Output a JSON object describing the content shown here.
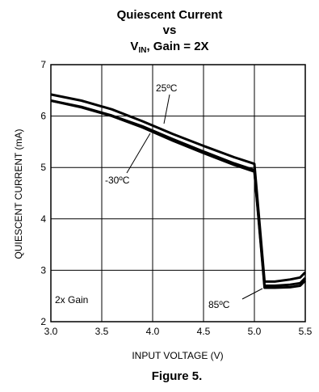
{
  "chart_data": {
    "type": "line",
    "title_line1": "Quiescent Current",
    "title_line2": "vs",
    "title_line3_main": "V",
    "title_line3_sub": "IN",
    "title_line3_rest": ", Gain = 2X",
    "xlabel": "INPUT VOLTAGE (V)",
    "ylabel": "QUIESCENT CURRENT (mA)",
    "xlim": [
      3.0,
      5.5
    ],
    "ylim": [
      2,
      7
    ],
    "xticks": [
      "3.0",
      "3.5",
      "4.0",
      "4.5",
      "5.0",
      "5.5"
    ],
    "yticks": [
      "2",
      "3",
      "4",
      "5",
      "6",
      "7"
    ],
    "grid": true,
    "series": [
      {
        "name": "25ºC",
        "x": [
          3.0,
          3.3,
          3.6,
          3.9,
          4.2,
          4.5,
          4.8,
          5.0,
          5.1,
          5.2,
          5.35,
          5.45,
          5.5
        ],
        "y": [
          6.42,
          6.3,
          6.13,
          5.9,
          5.65,
          5.42,
          5.2,
          5.07,
          2.78,
          2.78,
          2.82,
          2.86,
          2.96
        ]
      },
      {
        "name": "-30ºC",
        "x": [
          3.0,
          3.3,
          3.6,
          3.9,
          4.2,
          4.5,
          4.8,
          5.0,
          5.1,
          5.2,
          5.35,
          5.45,
          5.5
        ],
        "y": [
          6.3,
          6.17,
          6.0,
          5.78,
          5.52,
          5.28,
          5.05,
          4.92,
          2.66,
          2.66,
          2.67,
          2.7,
          2.8
        ]
      },
      {
        "name": "85ºC",
        "x": [
          3.0,
          3.3,
          3.6,
          3.9,
          4.2,
          4.5,
          4.8,
          5.0,
          5.1,
          5.2,
          5.35,
          5.45,
          5.5
        ],
        "y": [
          6.3,
          6.18,
          6.01,
          5.8,
          5.55,
          5.31,
          5.08,
          4.95,
          2.7,
          2.7,
          2.72,
          2.75,
          2.85
        ]
      }
    ],
    "annotations": [
      {
        "text": "25ºC"
      },
      {
        "text": "-30ºC"
      },
      {
        "text": "85ºC"
      },
      {
        "text": "2x Gain"
      }
    ]
  },
  "caption": "Figure 5."
}
